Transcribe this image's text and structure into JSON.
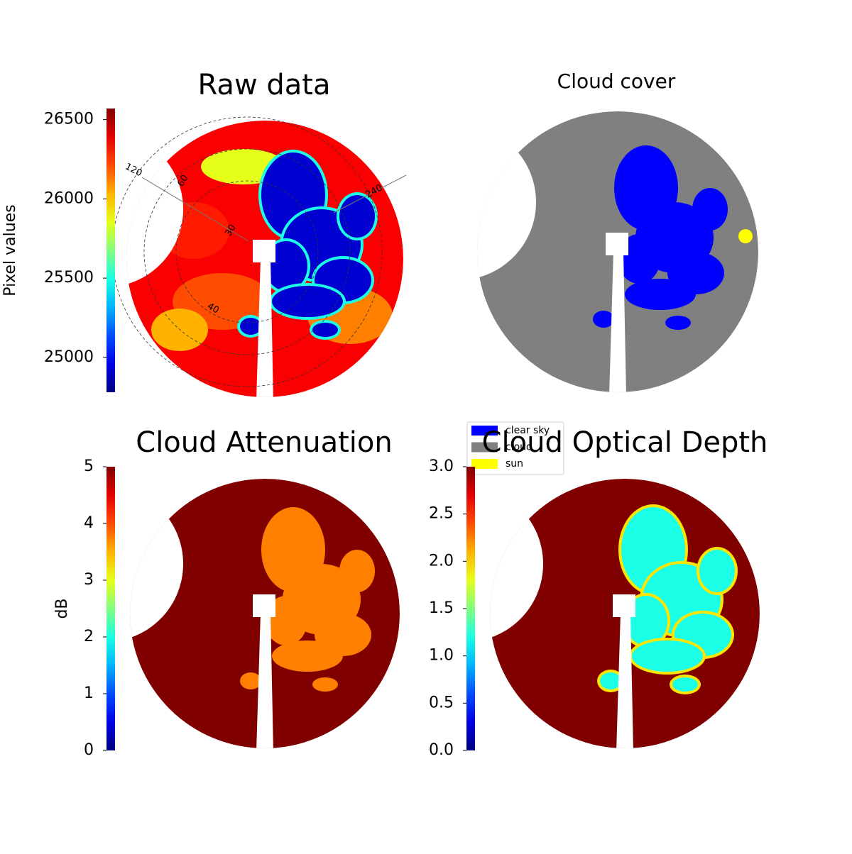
{
  "chart_data": [
    {
      "type": "image",
      "title": "Raw data",
      "ylabel": "Pixel values",
      "colormap": "jet",
      "ylim": [
        24780,
        26570
      ],
      "yticks": [
        25000,
        25500,
        26000,
        26500
      ],
      "annotations": [
        "120",
        "60",
        "30",
        "40",
        "240"
      ]
    },
    {
      "type": "classes",
      "title": "Cloud cover",
      "series": [
        {
          "name": "clear sky",
          "color": "#0000ff"
        },
        {
          "name": "cloud",
          "color": "#808080"
        },
        {
          "name": "sun",
          "color": "#ffff00"
        }
      ]
    },
    {
      "type": "image",
      "title": "Cloud Attenuation",
      "ylabel": "dB",
      "colormap": "jet",
      "ylim": [
        0,
        5
      ],
      "yticks": [
        0,
        1,
        2,
        3,
        4,
        5
      ]
    },
    {
      "type": "image",
      "title": "Cloud Optical Depth",
      "colormap": "jet",
      "ylim": [
        0,
        3
      ],
      "yticks": [
        {
          "value": 0,
          "label": "0.0"
        },
        {
          "value": 0.5,
          "label": "0.5"
        },
        {
          "value": 1,
          "label": "1.0"
        },
        {
          "value": 1.5,
          "label": "1.5"
        },
        {
          "value": 2,
          "label": "2.0"
        },
        {
          "value": 2.5,
          "label": "2.5"
        },
        {
          "value": 3,
          "label": "3.0"
        }
      ]
    }
  ]
}
